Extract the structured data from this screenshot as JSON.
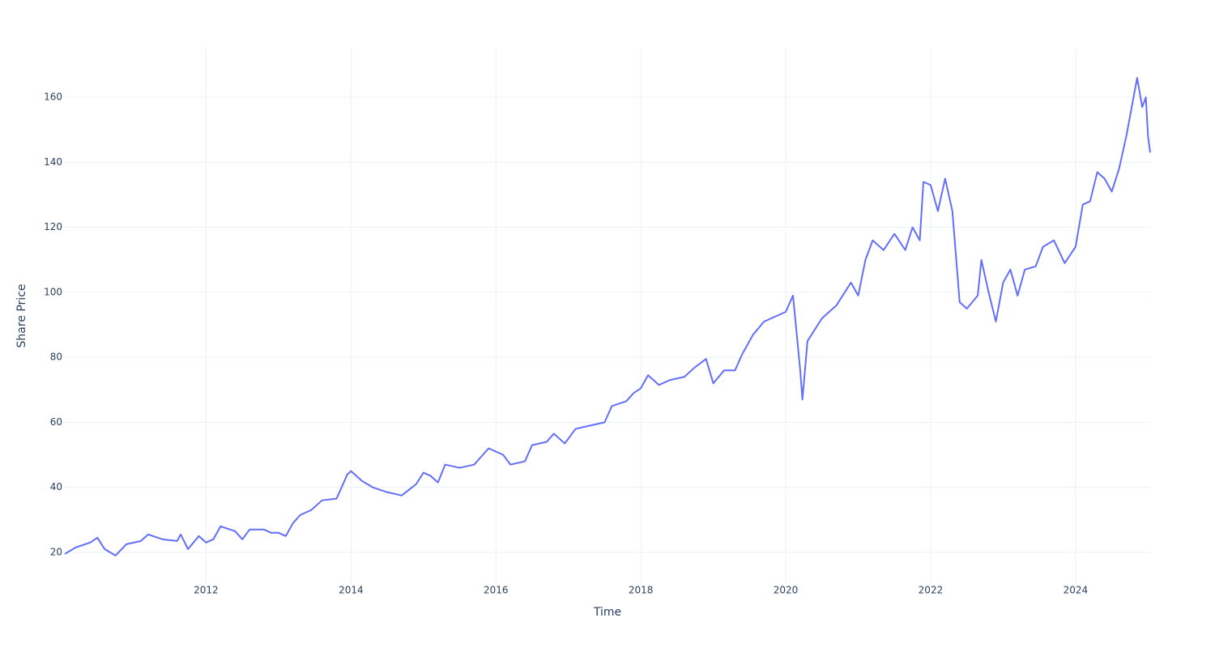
{
  "chart_data": {
    "type": "line",
    "x_label": "Time",
    "y_label": "Share Price",
    "x": [
      2010.05,
      2010.2,
      2010.4,
      2010.5,
      2010.6,
      2010.75,
      2010.9,
      2011.1,
      2011.2,
      2011.4,
      2011.6,
      2011.65,
      2011.75,
      2011.9,
      2012.0,
      2012.1,
      2012.2,
      2012.4,
      2012.5,
      2012.6,
      2012.8,
      2012.9,
      2013.0,
      2013.1,
      2013.2,
      2013.3,
      2013.45,
      2013.6,
      2013.8,
      2013.95,
      2014.0,
      2014.15,
      2014.3,
      2014.5,
      2014.7,
      2014.9,
      2015.0,
      2015.1,
      2015.2,
      2015.3,
      2015.5,
      2015.7,
      2015.9,
      2016.1,
      2016.2,
      2016.4,
      2016.5,
      2016.7,
      2016.8,
      2016.95,
      2017.1,
      2017.3,
      2017.5,
      2017.6,
      2017.8,
      2017.9,
      2018.0,
      2018.1,
      2018.25,
      2018.4,
      2018.6,
      2018.75,
      2018.9,
      2019.0,
      2019.15,
      2019.3,
      2019.4,
      2019.55,
      2019.7,
      2019.9,
      2020.0,
      2020.1,
      2020.2,
      2020.23,
      2020.3,
      2020.5,
      2020.7,
      2020.9,
      2021.0,
      2021.1,
      2021.2,
      2021.35,
      2021.5,
      2021.65,
      2021.75,
      2021.85,
      2021.9,
      2022.0,
      2022.1,
      2022.2,
      2022.3,
      2022.4,
      2022.5,
      2022.65,
      2022.7,
      2022.8,
      2022.9,
      2023.0,
      2023.1,
      2023.2,
      2023.3,
      2023.45,
      2023.55,
      2023.7,
      2023.85,
      2024.0,
      2024.1,
      2024.2,
      2024.3,
      2024.4,
      2024.5,
      2024.6,
      2024.7,
      2024.8,
      2024.85,
      2024.92,
      2024.97,
      2025.0,
      2025.03
    ],
    "series": [
      {
        "name": "Share Price",
        "color": "#636efa",
        "values": [
          19.5,
          21.5,
          23,
          24.5,
          21,
          19,
          22.5,
          23.5,
          25.5,
          24,
          23.5,
          25.5,
          21,
          25,
          23,
          24,
          28,
          26.5,
          24,
          27,
          27,
          26,
          26,
          25,
          29,
          31.5,
          33,
          36,
          36.5,
          44,
          45,
          42,
          40,
          38.5,
          37.5,
          41,
          44.5,
          43.5,
          41.5,
          47,
          46,
          47,
          52,
          50,
          47,
          48,
          53,
          54,
          56.5,
          53.5,
          58,
          59,
          60,
          65,
          66.5,
          69,
          70.5,
          74.5,
          71.5,
          73,
          74,
          77,
          79.5,
          72,
          76,
          76,
          81,
          87,
          91,
          93,
          94,
          99,
          76,
          67,
          85,
          92,
          96,
          103,
          99,
          110,
          116,
          113,
          118,
          113,
          120,
          116,
          134,
          133,
          125,
          135,
          125,
          97,
          95,
          99,
          110,
          100,
          91,
          103,
          107,
          99,
          107,
          108,
          114,
          116,
          109,
          114,
          127,
          128,
          137,
          135,
          131,
          138,
          148,
          160,
          166,
          157,
          160,
          148,
          143
        ]
      }
    ],
    "xlim": [
      2010.05,
      2025.03
    ],
    "xticks": [
      2012,
      2014,
      2016,
      2018,
      2020,
      2022,
      2024
    ],
    "ylim": [
      10.5,
      175
    ],
    "yticks": [
      20,
      40,
      60,
      80,
      100,
      120,
      140,
      160
    ],
    "grid": true
  }
}
